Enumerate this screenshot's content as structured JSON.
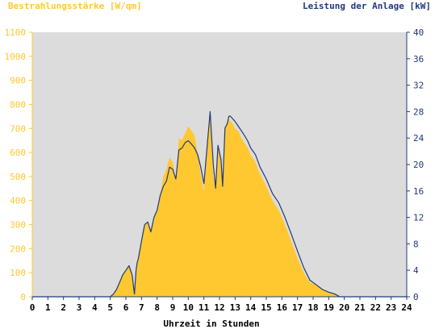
{
  "chart_data": {
    "type": "area",
    "left_axis_title": "Bestrahlungsstärke [W/qm]",
    "right_axis_title": "Leistung der Anlage [kW]",
    "xlabel": "Uhrzeit in Stunden",
    "xlim": [
      0,
      24
    ],
    "x_ticks": [
      "0",
      "1",
      "2",
      "3",
      "4",
      "5",
      "6",
      "7",
      "8",
      "9",
      "10",
      "11",
      "12",
      "13",
      "14",
      "15",
      "16",
      "17",
      "18",
      "19",
      "20",
      "21",
      "22",
      "23",
      "24"
    ],
    "left_ylim": [
      0,
      1100
    ],
    "left_ticks": [
      "0",
      "100",
      "200",
      "300",
      "400",
      "500",
      "600",
      "700",
      "800",
      "900",
      "1000",
      "1100"
    ],
    "right_ylim": [
      0,
      40
    ],
    "right_ticks": [
      "0",
      "4",
      "8",
      "12",
      "16",
      "20",
      "24",
      "28",
      "32",
      "36",
      "40"
    ],
    "grid": false,
    "colors": {
      "irradiance": "#ffc830",
      "power": "#1f3a7a",
      "plot_bg": "#dcdcdc",
      "left_axis": "#ffc830",
      "right_axis": "#1f3a7a"
    },
    "series": [
      {
        "name": "Bestrahlungsstärke [W/qm]",
        "axis": "left",
        "style": "area",
        "x": [
          5.0,
          5.2,
          5.4,
          5.6,
          5.8,
          6.0,
          6.2,
          6.4,
          6.55,
          6.65,
          6.72,
          6.8,
          7.0,
          7.2,
          7.4,
          7.6,
          7.8,
          8.0,
          8.2,
          8.4,
          8.6,
          8.8,
          9.0,
          9.2,
          9.4,
          9.6,
          9.8,
          10.0,
          10.2,
          10.4,
          10.6,
          10.8,
          11.0,
          11.2,
          11.4,
          11.6,
          11.75,
          11.9,
          12.0,
          12.1,
          12.2,
          12.35,
          12.5,
          12.6,
          12.7,
          12.85,
          13.0,
          13.2,
          13.4,
          13.6,
          13.8,
          14.0,
          14.3,
          14.6,
          15.0,
          15.4,
          15.8,
          16.2,
          16.6,
          17.0,
          17.4,
          17.8,
          18.2,
          18.6,
          19.0,
          19.4,
          19.7,
          20.0
        ],
        "y": [
          0,
          10,
          30,
          60,
          90,
          110,
          130,
          90,
          10,
          110,
          140,
          160,
          230,
          300,
          310,
          270,
          330,
          360,
          420,
          500,
          530,
          580,
          560,
          480,
          660,
          650,
          680,
          710,
          690,
          670,
          600,
          510,
          440,
          640,
          760,
          500,
          460,
          620,
          610,
          580,
          460,
          700,
          720,
          740,
          730,
          720,
          700,
          690,
          660,
          640,
          620,
          590,
          560,
          510,
          460,
          400,
          360,
          300,
          230,
          160,
          100,
          60,
          50,
          30,
          20,
          10,
          0,
          0
        ]
      },
      {
        "name": "Leistung der Anlage [kW]",
        "axis": "right",
        "style": "line",
        "x": [
          5.0,
          5.2,
          5.4,
          5.6,
          5.8,
          6.0,
          6.2,
          6.4,
          6.55,
          6.65,
          6.72,
          6.8,
          7.0,
          7.2,
          7.4,
          7.6,
          7.8,
          8.0,
          8.2,
          8.4,
          8.6,
          8.8,
          9.0,
          9.2,
          9.4,
          9.6,
          9.8,
          10.0,
          10.2,
          10.4,
          10.6,
          10.8,
          11.0,
          11.2,
          11.4,
          11.6,
          11.75,
          11.9,
          12.0,
          12.1,
          12.2,
          12.35,
          12.5,
          12.6,
          12.7,
          12.85,
          13.0,
          13.2,
          13.4,
          13.6,
          13.8,
          14.0,
          14.3,
          14.6,
          15.0,
          15.4,
          15.8,
          16.2,
          16.6,
          17.0,
          17.4,
          17.8,
          18.2,
          18.6,
          19.0,
          19.4,
          19.7,
          20.0
        ],
        "y": [
          0,
          0.4,
          1.1,
          2.2,
          3.3,
          4.0,
          4.7,
          3.3,
          0.4,
          4.0,
          5.1,
          5.8,
          8.4,
          10.9,
          11.3,
          9.8,
          12.0,
          13.1,
          15.3,
          16.7,
          17.5,
          19.6,
          19.3,
          17.8,
          22.2,
          22.5,
          23.3,
          23.6,
          23.1,
          22.5,
          21.5,
          19.6,
          17.1,
          22.5,
          28.0,
          20.0,
          16.4,
          22.9,
          21.8,
          20.7,
          16.7,
          25.5,
          26.2,
          27.3,
          27.3,
          26.9,
          26.5,
          25.8,
          25.1,
          24.4,
          23.6,
          22.5,
          21.5,
          19.6,
          17.8,
          15.6,
          14.2,
          12.0,
          9.5,
          6.9,
          4.4,
          2.5,
          1.8,
          1.1,
          0.7,
          0.4,
          0,
          0
        ]
      }
    ]
  }
}
